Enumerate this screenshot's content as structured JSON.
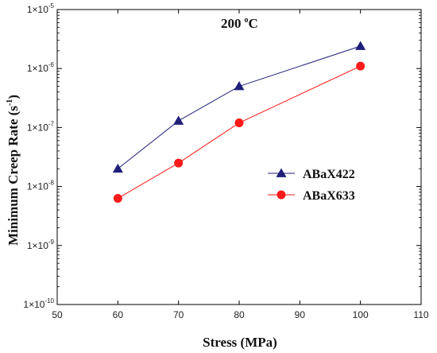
{
  "chart_data": {
    "type": "line",
    "title": "",
    "annotation": {
      "value": "200",
      "unit_sup": "o",
      "unit": "C"
    },
    "xlabel": "Stress (MPa)",
    "ylabel": {
      "main": "Minimum Creep Rate (s",
      "sup": "-1",
      "close": ")"
    },
    "xlim": [
      50,
      110
    ],
    "xticks": [
      50,
      60,
      70,
      80,
      90,
      100,
      110
    ],
    "ylim": [
      1e-10,
      1e-05
    ],
    "yscale": "log",
    "yticks": [
      {
        "value": 1e-10,
        "base": "1×10",
        "exp": "-10"
      },
      {
        "value": 1e-09,
        "base": "1×10",
        "exp": "-9"
      },
      {
        "value": 1e-08,
        "base": "1×10",
        "exp": "-8"
      },
      {
        "value": 1e-07,
        "base": "1×10",
        "exp": "-7"
      },
      {
        "value": 1e-06,
        "base": "1×10",
        "exp": "-6"
      },
      {
        "value": 1e-05,
        "base": "1×10",
        "exp": "-5"
      }
    ],
    "grid": false,
    "legend_position": "center-right",
    "series": [
      {
        "name": "ABaX422",
        "color": "#1f1f7a",
        "marker": "triangle",
        "x": [
          60,
          70,
          80,
          100
        ],
        "y": [
          2e-08,
          1.3e-07,
          5e-07,
          2.4e-06
        ]
      },
      {
        "name": "ABaX633",
        "color": "#ff1a1a",
        "marker": "circle",
        "x": [
          60,
          70,
          80,
          100
        ],
        "y": [
          6.3e-09,
          2.5e-08,
          1.2e-07,
          1.1e-06
        ]
      }
    ]
  }
}
